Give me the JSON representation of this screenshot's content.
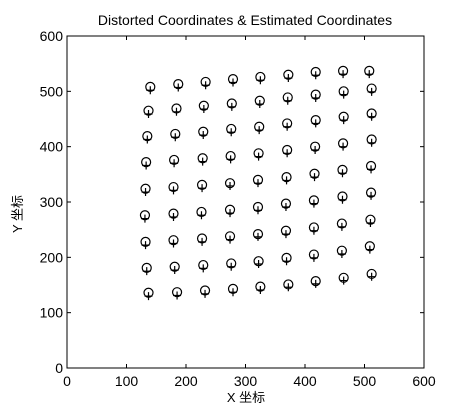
{
  "chart_data": {
    "type": "scatter",
    "title": "Distorted Coordinates & Estimated Coordinates",
    "xlabel": "X 坐标",
    "ylabel": "Y 坐标",
    "xlim": [
      0,
      600
    ],
    "ylim": [
      0,
      600
    ],
    "x_ticks": [
      "0",
      "100",
      "200",
      "300",
      "400",
      "500",
      "600"
    ],
    "y_ticks": [
      "0",
      "100",
      "200",
      "300",
      "400",
      "500",
      "600"
    ],
    "grid": false,
    "legend": "none",
    "series": [
      {
        "marker": "circle",
        "points": [
          [
            137,
            136
          ],
          [
            185,
            137
          ],
          [
            232,
            140
          ],
          [
            279,
            143
          ],
          [
            325,
            147
          ],
          [
            372,
            151
          ],
          [
            418,
            157
          ],
          [
            465,
            163
          ],
          [
            512,
            170
          ],
          [
            134,
            181
          ],
          [
            181,
            183
          ],
          [
            229,
            186
          ],
          [
            276,
            189
          ],
          [
            322,
            193
          ],
          [
            369,
            199
          ],
          [
            415,
            205
          ],
          [
            462,
            212
          ],
          [
            509,
            220
          ],
          [
            132,
            228
          ],
          [
            179,
            231
          ],
          [
            227,
            234
          ],
          [
            274,
            238
          ],
          [
            321,
            242
          ],
          [
            368,
            248
          ],
          [
            415,
            254
          ],
          [
            462,
            261
          ],
          [
            510,
            268
          ],
          [
            131,
            276
          ],
          [
            179,
            279
          ],
          [
            226,
            282
          ],
          [
            274,
            286
          ],
          [
            321,
            291
          ],
          [
            368,
            297
          ],
          [
            415,
            303
          ],
          [
            463,
            310
          ],
          [
            511,
            317
          ],
          [
            132,
            324
          ],
          [
            179,
            327
          ],
          [
            227,
            331
          ],
          [
            274,
            334
          ],
          [
            321,
            340
          ],
          [
            369,
            345
          ],
          [
            416,
            351
          ],
          [
            463,
            358
          ],
          [
            511,
            365
          ],
          [
            133,
            372
          ],
          [
            180,
            376
          ],
          [
            228,
            379
          ],
          [
            275,
            383
          ],
          [
            322,
            388
          ],
          [
            370,
            394
          ],
          [
            417,
            400
          ],
          [
            464,
            406
          ],
          [
            512,
            413
          ],
          [
            135,
            419
          ],
          [
            182,
            423
          ],
          [
            229,
            427
          ],
          [
            276,
            432
          ],
          [
            323,
            436
          ],
          [
            370,
            442
          ],
          [
            418,
            448
          ],
          [
            465,
            454
          ],
          [
            512,
            460
          ],
          [
            137,
            465
          ],
          [
            184,
            469
          ],
          [
            230,
            474
          ],
          [
            277,
            478
          ],
          [
            324,
            483
          ],
          [
            371,
            489
          ],
          [
            418,
            494
          ],
          [
            465,
            500
          ],
          [
            512,
            505
          ],
          [
            140,
            508
          ],
          [
            187,
            513
          ],
          [
            233,
            517
          ],
          [
            279,
            522
          ],
          [
            325,
            526
          ],
          [
            372,
            530
          ],
          [
            418,
            535
          ],
          [
            464,
            537
          ],
          [
            508,
            537
          ]
        ]
      },
      {
        "marker": "plus",
        "points": [
          [
            137,
            130
          ],
          [
            185,
            131
          ],
          [
            232,
            134
          ],
          [
            279,
            137
          ],
          [
            325,
            141
          ],
          [
            372,
            146
          ],
          [
            418,
            152
          ],
          [
            465,
            158
          ],
          [
            512,
            165
          ],
          [
            134,
            175
          ],
          [
            181,
            177
          ],
          [
            229,
            180
          ],
          [
            276,
            183
          ],
          [
            322,
            188
          ],
          [
            369,
            193
          ],
          [
            415,
            199
          ],
          [
            462,
            206
          ],
          [
            509,
            214
          ],
          [
            132,
            222
          ],
          [
            179,
            225
          ],
          [
            227,
            228
          ],
          [
            274,
            232
          ],
          [
            321,
            237
          ],
          [
            368,
            242
          ],
          [
            415,
            248
          ],
          [
            462,
            255
          ],
          [
            510,
            262
          ],
          [
            131,
            270
          ],
          [
            179,
            273
          ],
          [
            226,
            276
          ],
          [
            274,
            280
          ],
          [
            321,
            285
          ],
          [
            368,
            291
          ],
          [
            415,
            297
          ],
          [
            463,
            304
          ],
          [
            511,
            311
          ],
          [
            132,
            318
          ],
          [
            179,
            321
          ],
          [
            227,
            325
          ],
          [
            274,
            329
          ],
          [
            321,
            334
          ],
          [
            369,
            339
          ],
          [
            416,
            345
          ],
          [
            463,
            352
          ],
          [
            511,
            359
          ],
          [
            133,
            366
          ],
          [
            180,
            370
          ],
          [
            228,
            373
          ],
          [
            275,
            377
          ],
          [
            322,
            382
          ],
          [
            370,
            388
          ],
          [
            417,
            394
          ],
          [
            464,
            400
          ],
          [
            512,
            407
          ],
          [
            135,
            413
          ],
          [
            182,
            417
          ],
          [
            229,
            421
          ],
          [
            276,
            426
          ],
          [
            323,
            430
          ],
          [
            370,
            436
          ],
          [
            418,
            442
          ],
          [
            465,
            448
          ],
          [
            512,
            454
          ],
          [
            137,
            459
          ],
          [
            184,
            463
          ],
          [
            230,
            468
          ],
          [
            277,
            472
          ],
          [
            324,
            477
          ],
          [
            371,
            483
          ],
          [
            418,
            488
          ],
          [
            465,
            494
          ],
          [
            512,
            499
          ],
          [
            140,
            502
          ],
          [
            187,
            507
          ],
          [
            233,
            511
          ],
          [
            279,
            516
          ],
          [
            325,
            520
          ],
          [
            372,
            524
          ],
          [
            418,
            529
          ],
          [
            464,
            531
          ],
          [
            508,
            531
          ]
        ]
      }
    ]
  }
}
